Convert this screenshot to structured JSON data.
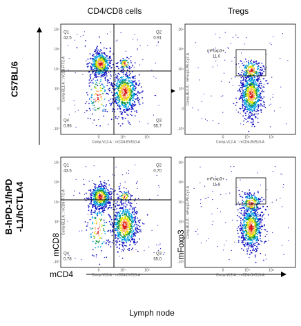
{
  "column_titles": [
    "CD4/CD8 cells",
    "Tregs"
  ],
  "row_labels": [
    "C57BL/6",
    "B-hPD-1/hPD-L1/hCTLA4"
  ],
  "axis_labels": {
    "x": "mCD4",
    "y_left": "mCD8",
    "y_right": "mFoxp3"
  },
  "footer": "Lymph  node",
  "panels": [
    {
      "x_axis_label": "Comp-VL2-A :: mCD4-BV510-A",
      "y_axis_label": "Comp-BL1-A :: mCD8-FITC-A",
      "y_ticks": [
        "10⁶",
        "10⁵",
        "10⁴",
        "10³",
        "0",
        "-10³"
      ],
      "x_ticks": [
        "0",
        "10⁴",
        "10⁵"
      ],
      "quadrants": [
        {
          "name": "Q1",
          "value": "42.5"
        },
        {
          "name": "Q2",
          "value": "0.91"
        },
        {
          "name": "Q4",
          "value": "0.96"
        },
        {
          "name": "Q3",
          "value": "55.7"
        }
      ]
    },
    {
      "x_axis_label": "Comp-VL2-A :: mCD4-BV510-A",
      "y_axis_label": "Comp-BL4-A :: mFoxp3-PE-Cy7-A",
      "y_ticks": [
        "10⁶",
        "10⁵",
        "10⁴",
        "10³",
        "0",
        "-10³"
      ],
      "x_ticks": [
        "0",
        "10⁴",
        "10⁵"
      ],
      "gate": {
        "name": "mFoxp3+",
        "value": "11.0"
      }
    },
    {
      "x_axis_label": "Comp-VL2-A :: mCD4-BV510-A",
      "y_axis_label": "Comp-BL1-A :: mCD8-FITC-A",
      "y_ticks": [
        "10⁶",
        "10⁵",
        "10⁴",
        "10³",
        "0",
        "-10³"
      ],
      "x_ticks": [
        "0",
        "10⁴",
        "10⁵"
      ],
      "quadrants": [
        {
          "name": "Q1",
          "value": "43.5"
        },
        {
          "name": "Q2",
          "value": "0.70"
        },
        {
          "name": "Q4",
          "value": "0.78"
        },
        {
          "name": "Q3",
          "value": "55.0"
        }
      ]
    },
    {
      "x_axis_label": "Comp-VL2-A :: mCD4-BV510-A",
      "y_axis_label": "Comp-BL4-A :: mFoxp3-PE-Cy7-A",
      "y_ticks": [
        "10⁶",
        "10⁵",
        "10⁴",
        "10³",
        "0",
        "-10³"
      ],
      "x_ticks": [
        "0",
        "10⁴",
        "10⁵"
      ],
      "gate": {
        "name": "mFoxp3+",
        "value": "11.8"
      }
    }
  ]
}
